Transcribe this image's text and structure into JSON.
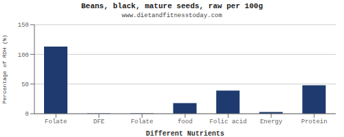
{
  "chart_data": {
    "type": "bar",
    "title": "Beans, black, mature seeds, raw per 100g",
    "subtitle": "www.dietandfitnesstoday.com",
    "xlabel": "Different Nutrients",
    "ylabel": "Percentage of RDH (%)",
    "categories": [
      "Folate",
      "DFE",
      "Folate",
      "food",
      "Folic acid",
      "Energy",
      "Protein"
    ],
    "values": [
      113,
      0.5,
      0.5,
      18,
      39,
      3,
      48
    ],
    "color": "#1e3a6e",
    "ylim": [
      0,
      150
    ],
    "yticks": [
      0,
      50,
      100,
      150
    ],
    "grid": true
  }
}
